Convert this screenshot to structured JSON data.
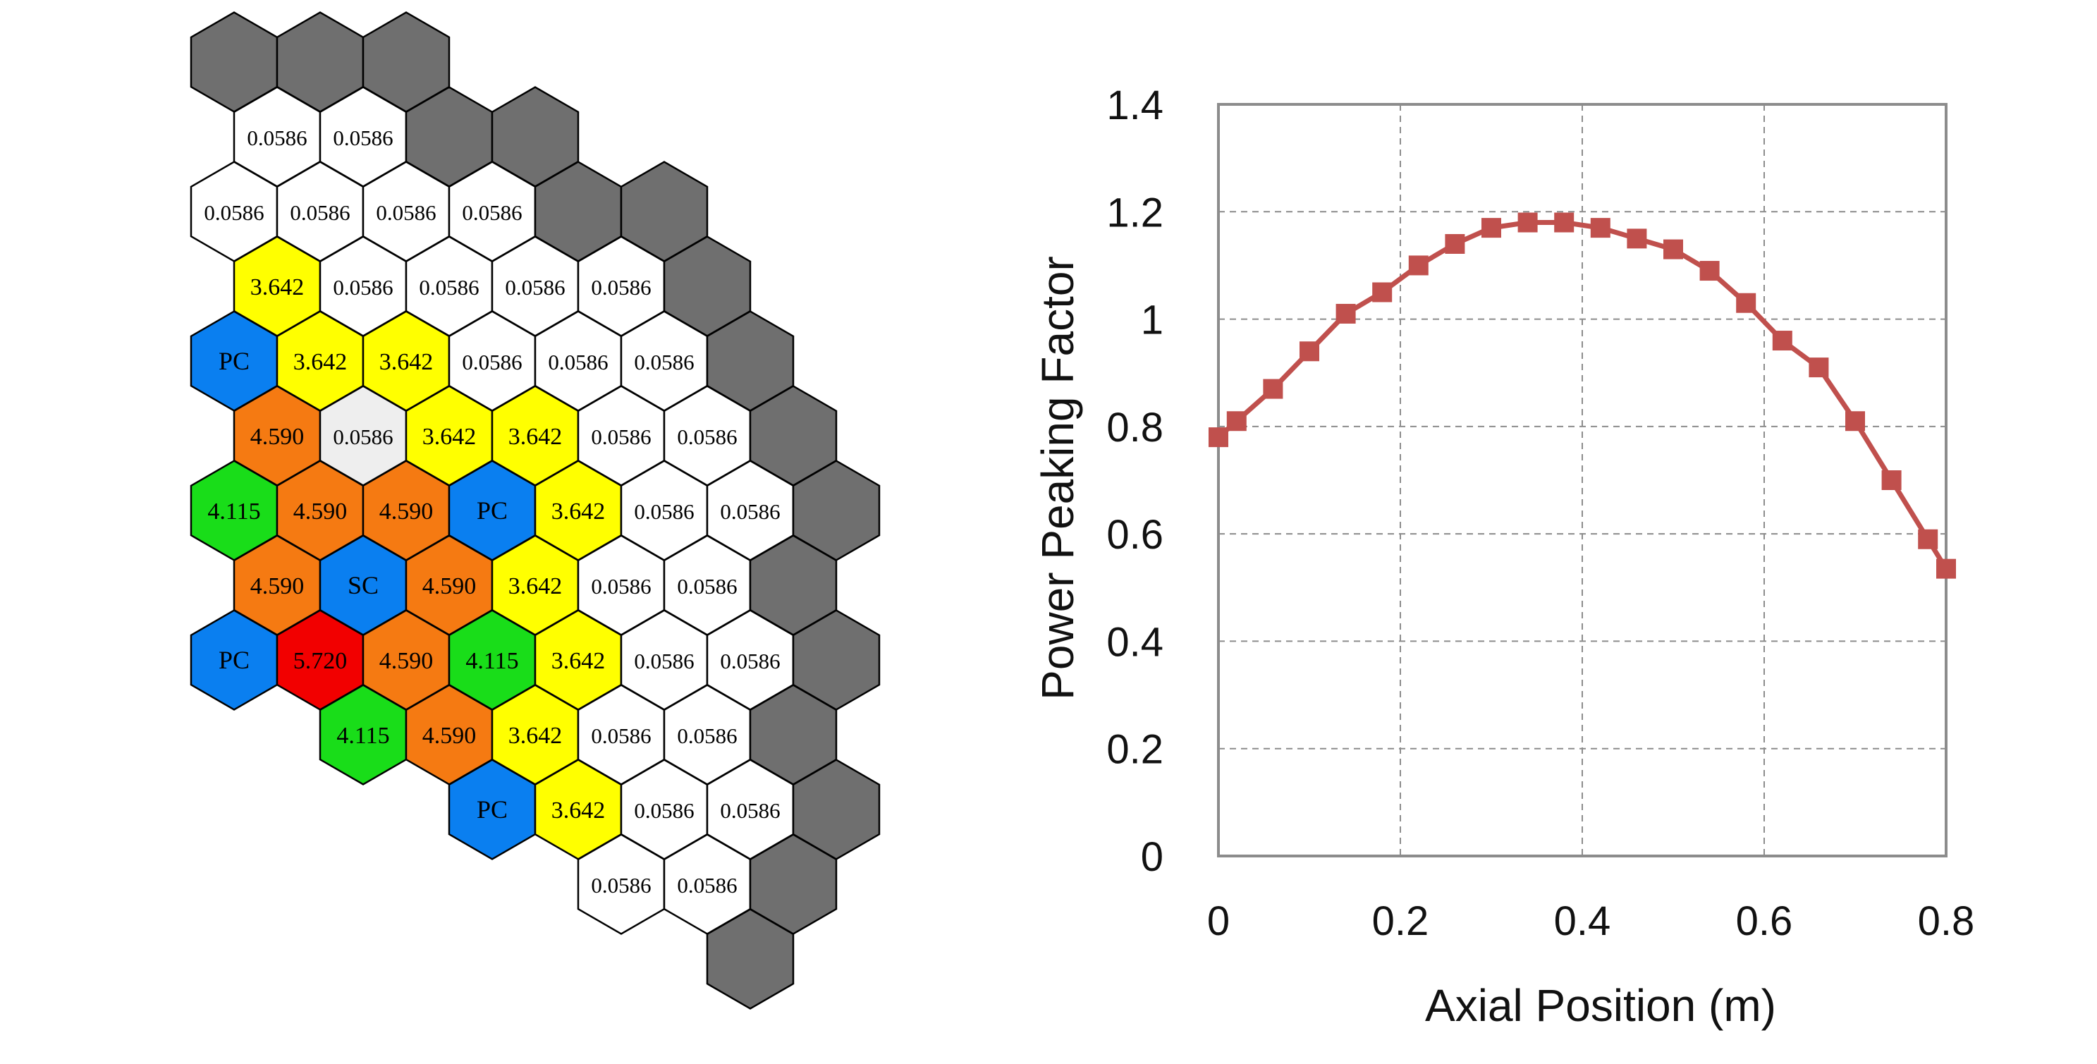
{
  "colors": {
    "outer": "#6f6f6f",
    "white": "#ffffff",
    "light": "#eeeeee",
    "yellow": "#ffff00",
    "orange": "#f57a12",
    "green": "#19dd19",
    "red": "#f20000",
    "blue": "#0a7ff0",
    "series": "#c0504d",
    "grid": "#8c8c8c",
    "frame": "#8c8c8c"
  },
  "core_map": {
    "rows": [
      {
        "start": 0,
        "cells": [
          {
            "c": "outer",
            "t": ""
          },
          {
            "c": "outer",
            "t": ""
          },
          {
            "c": "outer",
            "t": ""
          }
        ]
      },
      {
        "start": 0.5,
        "cells": [
          {
            "c": "white",
            "t": "0.0586"
          },
          {
            "c": "white",
            "t": "0.0586"
          },
          {
            "c": "outer",
            "t": ""
          },
          {
            "c": "outer",
            "t": ""
          }
        ]
      },
      {
        "start": 0,
        "cells": [
          {
            "c": "white",
            "t": "0.0586"
          },
          {
            "c": "white",
            "t": "0.0586"
          },
          {
            "c": "white",
            "t": "0.0586"
          },
          {
            "c": "white",
            "t": "0.0586"
          },
          {
            "c": "outer",
            "t": ""
          },
          {
            "c": "outer",
            "t": ""
          }
        ]
      },
      {
        "start": 0.5,
        "cells": [
          {
            "c": "yellow",
            "t": "3.642"
          },
          {
            "c": "white",
            "t": "0.0586"
          },
          {
            "c": "white",
            "t": "0.0586"
          },
          {
            "c": "white",
            "t": "0.0586"
          },
          {
            "c": "white",
            "t": "0.0586"
          },
          {
            "c": "outer",
            "t": ""
          }
        ]
      },
      {
        "start": 0,
        "cells": [
          {
            "c": "blue",
            "t": "PC"
          },
          {
            "c": "yellow",
            "t": "3.642"
          },
          {
            "c": "yellow",
            "t": "3.642"
          },
          {
            "c": "white",
            "t": "0.0586"
          },
          {
            "c": "white",
            "t": "0.0586"
          },
          {
            "c": "white",
            "t": "0.0586"
          },
          {
            "c": "outer",
            "t": ""
          }
        ]
      },
      {
        "start": 0.5,
        "cells": [
          {
            "c": "orange",
            "t": "4.590"
          },
          {
            "c": "light",
            "t": "0.0586"
          },
          {
            "c": "yellow",
            "t": "3.642"
          },
          {
            "c": "yellow",
            "t": "3.642"
          },
          {
            "c": "white",
            "t": "0.0586"
          },
          {
            "c": "white",
            "t": "0.0586"
          },
          {
            "c": "outer",
            "t": ""
          }
        ]
      },
      {
        "start": 0,
        "cells": [
          {
            "c": "green",
            "t": "4.115"
          },
          {
            "c": "orange",
            "t": "4.590"
          },
          {
            "c": "orange",
            "t": "4.590"
          },
          {
            "c": "blue",
            "t": "PC"
          },
          {
            "c": "yellow",
            "t": "3.642"
          },
          {
            "c": "white",
            "t": "0.0586"
          },
          {
            "c": "white",
            "t": "0.0586"
          },
          {
            "c": "outer",
            "t": ""
          }
        ]
      },
      {
        "start": 0.5,
        "cells": [
          {
            "c": "orange",
            "t": "4.590"
          },
          {
            "c": "blue",
            "t": "SC"
          },
          {
            "c": "orange",
            "t": "4.590"
          },
          {
            "c": "yellow",
            "t": "3.642"
          },
          {
            "c": "white",
            "t": "0.0586"
          },
          {
            "c": "white",
            "t": "0.0586"
          },
          {
            "c": "outer",
            "t": ""
          }
        ]
      },
      {
        "start": 0,
        "cells": [
          {
            "c": "blue",
            "t": "PC"
          },
          {
            "c": "red",
            "t": "5.720"
          },
          {
            "c": "orange",
            "t": "4.590"
          },
          {
            "c": "green",
            "t": "4.115"
          },
          {
            "c": "yellow",
            "t": "3.642"
          },
          {
            "c": "white",
            "t": "0.0586"
          },
          {
            "c": "white",
            "t": "0.0586"
          },
          {
            "c": "outer",
            "t": ""
          }
        ]
      },
      {
        "start": 1.5,
        "cells": [
          {
            "c": "green",
            "t": "4.115"
          },
          {
            "c": "orange",
            "t": "4.590"
          },
          {
            "c": "yellow",
            "t": "3.642"
          },
          {
            "c": "white",
            "t": "0.0586"
          },
          {
            "c": "white",
            "t": "0.0586"
          },
          {
            "c": "outer",
            "t": ""
          }
        ]
      },
      {
        "start": 3,
        "cells": [
          {
            "c": "blue",
            "t": "PC"
          },
          {
            "c": "yellow",
            "t": "3.642"
          },
          {
            "c": "white",
            "t": "0.0586"
          },
          {
            "c": "white",
            "t": "0.0586"
          },
          {
            "c": "outer",
            "t": ""
          }
        ]
      },
      {
        "start": 4.5,
        "cells": [
          {
            "c": "white",
            "t": "0.0586"
          },
          {
            "c": "white",
            "t": "0.0586"
          },
          {
            "c": "outer",
            "t": ""
          }
        ]
      },
      {
        "start": 6,
        "cells": [
          {
            "c": "outer",
            "t": ""
          }
        ]
      }
    ]
  },
  "chart_data": {
    "type": "line",
    "title": "",
    "xlabel": "Axial Position  (m)",
    "ylabel": "Power Peaking Factor",
    "xlim": [
      0,
      0.8
    ],
    "ylim": [
      0,
      1.4
    ],
    "xticks": [
      0,
      0.2,
      0.4,
      0.6,
      0.8
    ],
    "xtick_labels": [
      "0",
      "0.2",
      "0.4",
      "0.6",
      "0.8"
    ],
    "yticks": [
      0,
      0.2,
      0.4,
      0.6,
      0.8,
      1,
      1.2,
      1.4
    ],
    "ytick_labels": [
      "0",
      "0.2",
      "0.4",
      "0.6",
      "0.8",
      "1",
      "1.2",
      "1.4"
    ],
    "grid": true,
    "marker": "square",
    "series": [
      {
        "x": [
          0,
          0.02,
          0.06,
          0.1,
          0.14,
          0.18,
          0.22,
          0.26,
          0.3,
          0.34,
          0.38,
          0.42,
          0.46,
          0.5,
          0.54,
          0.58,
          0.62,
          0.66,
          0.7,
          0.74,
          0.78,
          0.8
        ],
        "y": [
          0.78,
          0.81,
          0.87,
          0.94,
          1.01,
          1.05,
          1.1,
          1.14,
          1.17,
          1.18,
          1.18,
          1.17,
          1.15,
          1.13,
          1.09,
          1.03,
          0.96,
          0.91,
          0.81,
          0.7,
          0.59,
          0.535
        ]
      }
    ]
  }
}
